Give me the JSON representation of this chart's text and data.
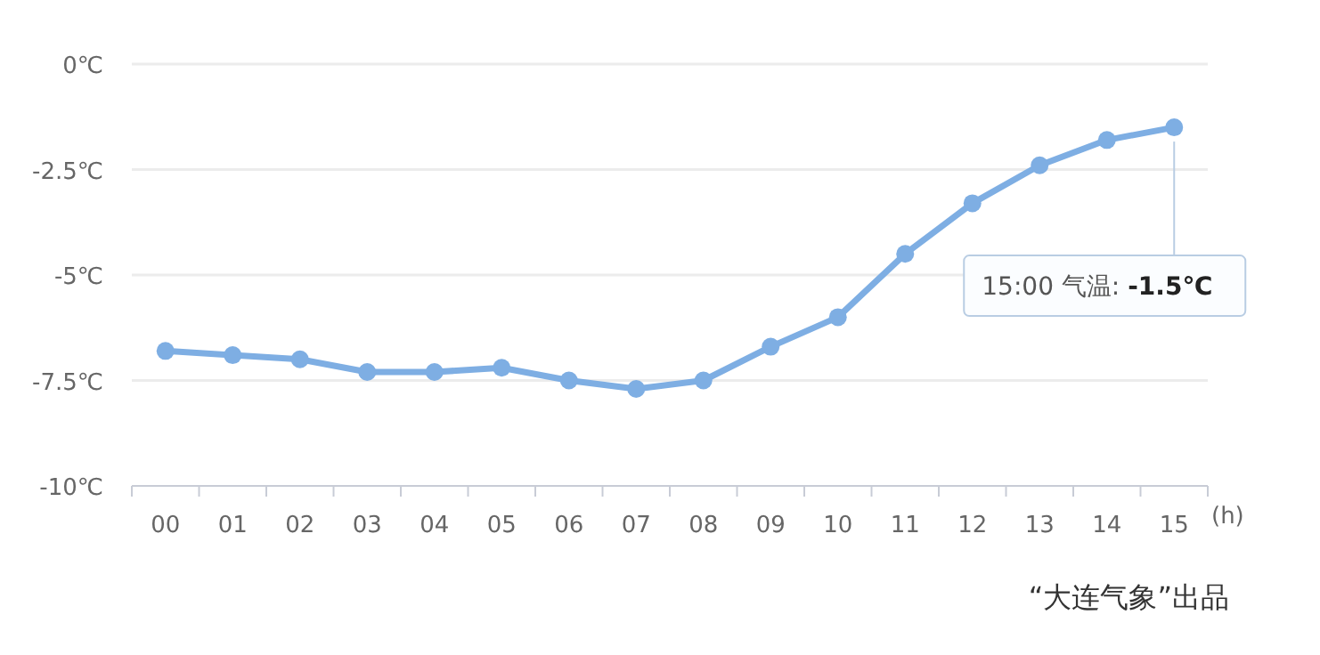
{
  "chart_data": {
    "type": "line",
    "categories": [
      "00",
      "01",
      "02",
      "03",
      "04",
      "05",
      "06",
      "07",
      "08",
      "09",
      "10",
      "11",
      "12",
      "13",
      "14",
      "15"
    ],
    "series": [
      {
        "color": "#7eaee3",
        "values": [
          -6.8,
          -6.9,
          -7.0,
          -7.3,
          -7.3,
          -7.2,
          -7.5,
          -7.7,
          -7.5,
          -6.7,
          -6.0,
          -4.5,
          -3.3,
          -2.4,
          -1.8,
          -1.5
        ]
      }
    ],
    "xlabel": "(h)",
    "ylim": [
      -10,
      0
    ],
    "yticks": [
      {
        "value": 0,
        "label": "0℃"
      },
      {
        "value": -2.5,
        "label": "-2.5℃"
      },
      {
        "value": -5,
        "label": "-5℃"
      },
      {
        "value": -7.5,
        "label": "-7.5℃"
      },
      {
        "value": -10,
        "label": "-10℃"
      }
    ],
    "grid": "y",
    "marker": "circle",
    "annotations": [
      {
        "text": "15:00 气温: **-1.5℃**",
        "x": "15",
        "y": -1.5
      },
      "“大连气象”出品"
    ]
  }
}
